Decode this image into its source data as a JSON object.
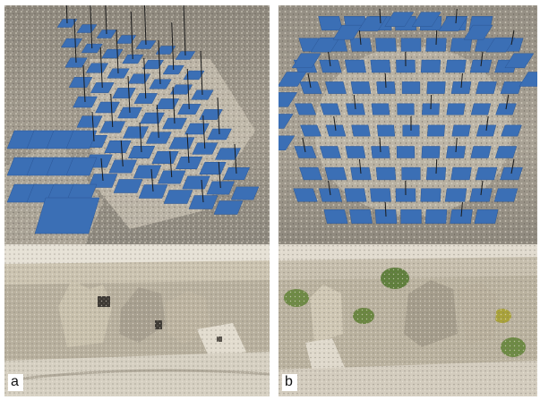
{
  "figure": {
    "panels": [
      {
        "id": "a",
        "label": "a"
      },
      {
        "id": "b",
        "label": "b"
      }
    ]
  },
  "colors": {
    "camera_plane": "#3b6fb5",
    "terrain_light": "#d8d2c4",
    "terrain_dark": "#6f6a60",
    "sky_grey": "#9a958b",
    "rock": "#c9c3b6"
  }
}
